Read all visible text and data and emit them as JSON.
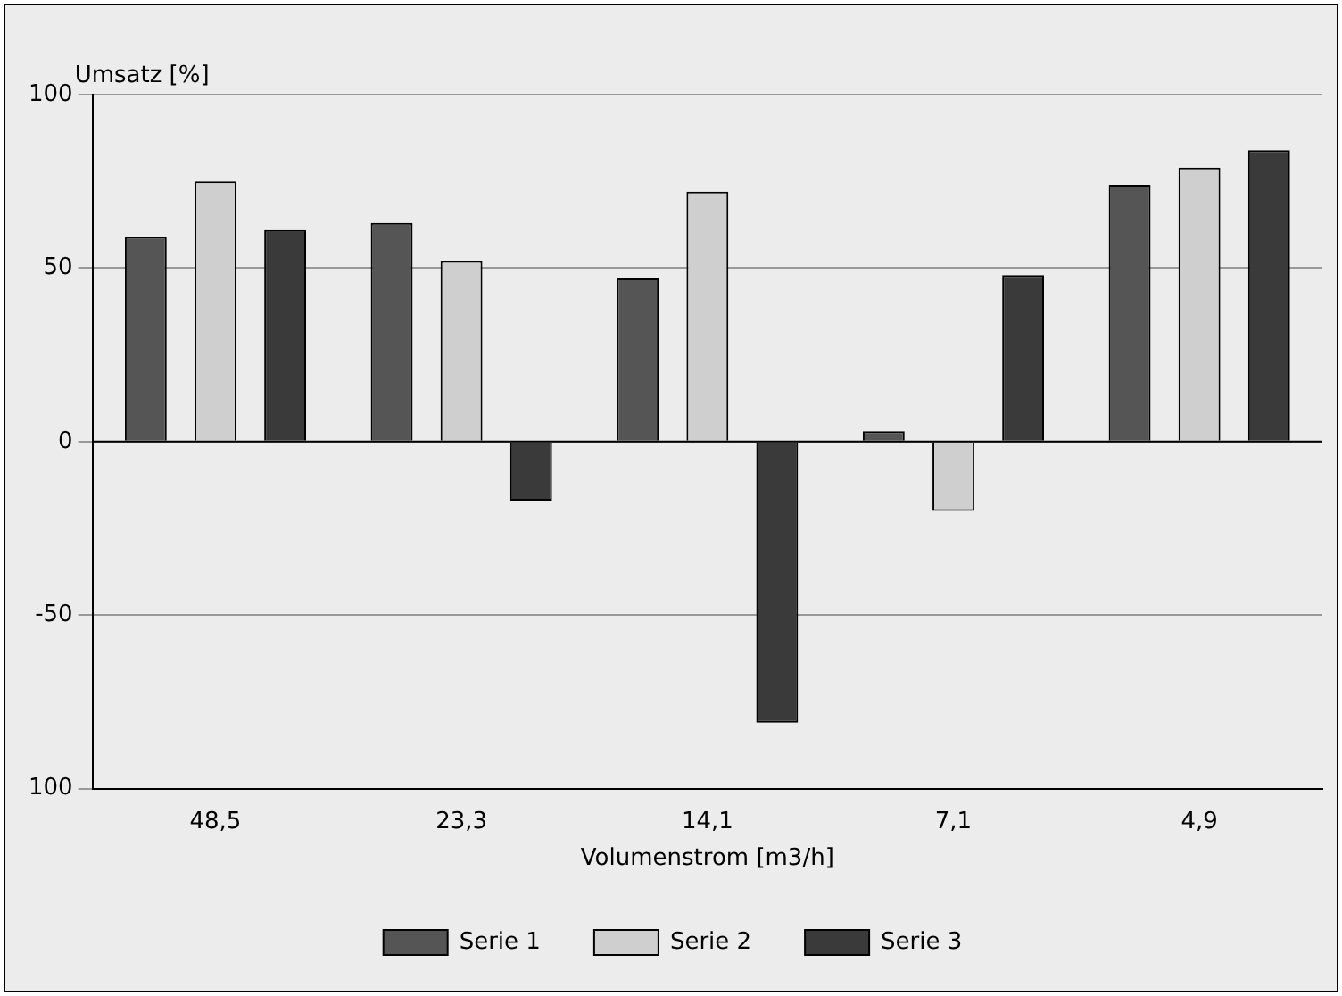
{
  "chart_data": {
    "type": "bar",
    "xlabel": "Volumenstrom [m3/h]",
    "ylabel": "Umsatz [%]",
    "categories": [
      "48,5",
      "23,3",
      "14,1",
      "7,1",
      "4,9"
    ],
    "series": [
      {
        "name": "Serie 1",
        "color": "#555555",
        "values": [
          59,
          63,
          47,
          3,
          74
        ]
      },
      {
        "name": "Serie 2",
        "color": "#cfcfcf",
        "values": [
          75,
          52,
          72,
          -20,
          79
        ]
      },
      {
        "name": "Serie 3",
        "color": "#3a3a3a",
        "values": [
          61,
          -17,
          -81,
          48,
          84
        ]
      }
    ],
    "ylim": [
      -100,
      100
    ],
    "yticks": [
      {
        "value": -100,
        "label": "100"
      },
      -50,
      0,
      50,
      100
    ],
    "grid": "y",
    "legend": "bottom"
  }
}
